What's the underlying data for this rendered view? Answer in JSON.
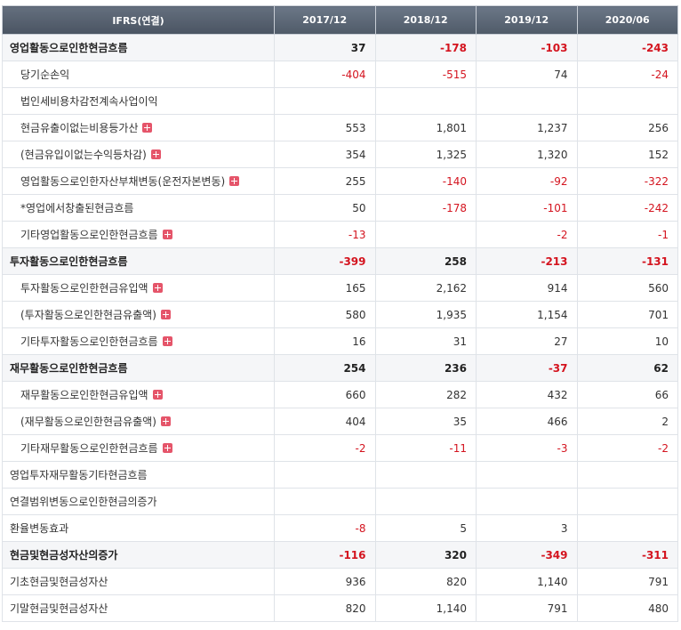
{
  "header": [
    "IFRS(연결)",
    "2017/12",
    "2018/12",
    "2019/12",
    "2020/06"
  ],
  "rows": [
    {
      "label": "영업활동으로인한현금흐름",
      "level": "major",
      "expand": false,
      "values": [
        "37",
        "-178",
        "-103",
        "-243"
      ]
    },
    {
      "label": "당기순손익",
      "level": "sub",
      "expand": false,
      "values": [
        "-404",
        "-515",
        "74",
        "-24"
      ]
    },
    {
      "label": "법인세비용차감전계속사업이익",
      "level": "sub",
      "expand": false,
      "values": [
        "",
        "",
        "",
        ""
      ]
    },
    {
      "label": "현금유출이없는비용등가산",
      "level": "sub",
      "expand": true,
      "values": [
        "553",
        "1,801",
        "1,237",
        "256"
      ]
    },
    {
      "label": "(현금유입이없는수익등차감)",
      "level": "sub",
      "expand": true,
      "values": [
        "354",
        "1,325",
        "1,320",
        "152"
      ]
    },
    {
      "label": "영업활동으로인한자산부채변동(운전자본변동)",
      "level": "sub",
      "expand": true,
      "values": [
        "255",
        "-140",
        "-92",
        "-322"
      ]
    },
    {
      "label": "*영업에서창출된현금흐름",
      "level": "sub",
      "expand": false,
      "values": [
        "50",
        "-178",
        "-101",
        "-242"
      ]
    },
    {
      "label": "기타영업활동으로인한현금흐름",
      "level": "sub",
      "expand": true,
      "values": [
        "-13",
        "",
        "-2",
        "-1"
      ]
    },
    {
      "label": "투자활동으로인한현금흐름",
      "level": "major",
      "expand": false,
      "values": [
        "-399",
        "258",
        "-213",
        "-131"
      ]
    },
    {
      "label": "투자활동으로인한현금유입액",
      "level": "sub",
      "expand": true,
      "values": [
        "165",
        "2,162",
        "914",
        "560"
      ]
    },
    {
      "label": "(투자활동으로인한현금유출액)",
      "level": "sub",
      "expand": true,
      "values": [
        "580",
        "1,935",
        "1,154",
        "701"
      ]
    },
    {
      "label": "기타투자활동으로인한현금흐름",
      "level": "sub",
      "expand": true,
      "values": [
        "16",
        "31",
        "27",
        "10"
      ]
    },
    {
      "label": "재무활동으로인한현금흐름",
      "level": "major",
      "expand": false,
      "values": [
        "254",
        "236",
        "-37",
        "62"
      ]
    },
    {
      "label": "재무활동으로인한현금유입액",
      "level": "sub",
      "expand": true,
      "values": [
        "660",
        "282",
        "432",
        "66"
      ]
    },
    {
      "label": "(재무활동으로인한현금유출액)",
      "level": "sub",
      "expand": true,
      "values": [
        "404",
        "35",
        "466",
        "2"
      ]
    },
    {
      "label": "기타재무활동으로인한현금흐름",
      "level": "sub",
      "expand": true,
      "values": [
        "-2",
        "-11",
        "-3",
        "-2"
      ]
    },
    {
      "label": "영업투자재무활동기타현금흐름",
      "level": "plain",
      "expand": false,
      "values": [
        "",
        "",
        "",
        ""
      ]
    },
    {
      "label": "연결범위변동으로인한현금의증가",
      "level": "plain",
      "expand": false,
      "values": [
        "",
        "",
        "",
        ""
      ]
    },
    {
      "label": "환율변동효과",
      "level": "plain",
      "expand": false,
      "values": [
        "-8",
        "5",
        "3",
        ""
      ]
    },
    {
      "label": "현금및현금성자산의증가",
      "level": "major",
      "expand": false,
      "values": [
        "-116",
        "320",
        "-349",
        "-311"
      ]
    },
    {
      "label": "기초현금및현금성자산",
      "level": "plain",
      "expand": false,
      "values": [
        "936",
        "820",
        "1,140",
        "791"
      ]
    },
    {
      "label": "기말현금및현금성자산",
      "level": "plain",
      "expand": false,
      "values": [
        "820",
        "1,140",
        "791",
        "480"
      ]
    }
  ],
  "icons": {
    "expand": "plus-box-icon",
    "expand_color": "#e5556a"
  },
  "colors": {
    "header_bg": "#5b6776",
    "negative": "#d4141f"
  }
}
